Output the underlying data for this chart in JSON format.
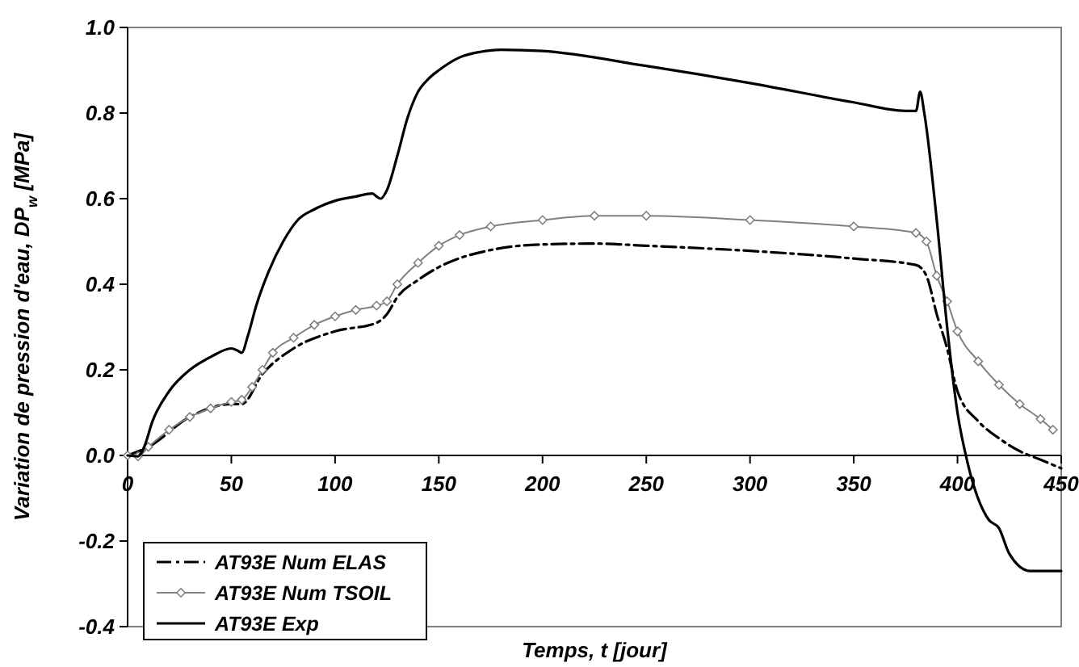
{
  "chart_data": {
    "type": "line",
    "xlabel": "Temps, t [jour]",
    "ylabel": "Variation de pression d'eau, DP$_{w}$ [MPa]",
    "xlim": [
      0,
      450
    ],
    "ylim": [
      -0.4,
      1.0
    ],
    "xticks": [
      0,
      50,
      100,
      150,
      200,
      250,
      300,
      350,
      400,
      450
    ],
    "yticks": [
      {
        "value": -0.4,
        "label": "-0.4"
      },
      {
        "value": -0.2,
        "label": "-0.2"
      },
      {
        "value": 0,
        "label": "0.0"
      },
      {
        "value": 0.2,
        "label": "0.2"
      },
      {
        "value": 0.4,
        "label": "0.4"
      },
      {
        "value": 0.6,
        "label": "0.6"
      },
      {
        "value": 0.8,
        "label": "0.8"
      },
      {
        "value": 1.0,
        "label": "1.0"
      }
    ],
    "grid": false,
    "legend": "bottom left",
    "series": [
      {
        "name": "AT93E Num ELAS",
        "color": "#000000",
        "line_style": "dashed",
        "marker": "none",
        "x": [
          0,
          10,
          30,
          50,
          55,
          65,
          80,
          100,
          120,
          125,
          130,
          140,
          150,
          175,
          200,
          225,
          250,
          300,
          350,
          380,
          385,
          390,
          395,
          400,
          410,
          420,
          430,
          440,
          450
        ],
        "values": [
          0,
          0.02,
          0.09,
          0.12,
          0.12,
          0.19,
          0.25,
          0.29,
          0.31,
          0.33,
          0.37,
          0.41,
          0.44,
          0.48,
          0.493,
          0.495,
          0.49,
          0.478,
          0.46,
          0.445,
          0.42,
          0.33,
          0.25,
          0.15,
          0.08,
          0.04,
          0.01,
          -0.01,
          -0.03
        ]
      },
      {
        "name": "AT93E Num TSOIL",
        "color": "#808080",
        "line_style": "solid",
        "marker": "diamond",
        "x": [
          0,
          5,
          10,
          20,
          30,
          40,
          50,
          55,
          60,
          65,
          70,
          80,
          90,
          100,
          110,
          120,
          125,
          130,
          140,
          150,
          160,
          175,
          200,
          225,
          250,
          300,
          350,
          380,
          385,
          390,
          395,
          400,
          410,
          420,
          430,
          440,
          446
        ],
        "values": [
          0,
          -0.002,
          0.02,
          0.06,
          0.09,
          0.11,
          0.125,
          0.13,
          0.16,
          0.2,
          0.24,
          0.275,
          0.305,
          0.325,
          0.34,
          0.35,
          0.36,
          0.4,
          0.45,
          0.49,
          0.515,
          0.535,
          0.55,
          0.56,
          0.56,
          0.55,
          0.535,
          0.52,
          0.5,
          0.42,
          0.36,
          0.29,
          0.22,
          0.165,
          0.12,
          0.085,
          0.06
        ]
      },
      {
        "name": "AT93E Exp",
        "color": "#000000",
        "line_style": "solid",
        "marker": "none",
        "x": [
          0,
          5,
          8,
          12,
          20,
          30,
          40,
          50,
          53,
          55,
          58,
          62,
          68,
          75,
          82,
          90,
          100,
          110,
          118,
          120,
          122,
          125,
          130,
          135,
          140,
          145,
          150,
          160,
          170,
          180,
          200,
          250,
          300,
          350,
          375,
          380,
          382,
          384,
          390,
          395,
          400,
          405,
          415,
          420,
          425,
          435,
          450
        ],
        "values": [
          0,
          -0.002,
          0.02,
          0.08,
          0.15,
          0.2,
          0.23,
          0.25,
          0.245,
          0.24,
          0.28,
          0.35,
          0.43,
          0.5,
          0.55,
          0.575,
          0.595,
          0.605,
          0.612,
          0.605,
          0.6,
          0.62,
          0.7,
          0.79,
          0.85,
          0.88,
          0.9,
          0.93,
          0.943,
          0.948,
          0.945,
          0.91,
          0.87,
          0.825,
          0.805,
          0.805,
          0.85,
          0.8,
          0.55,
          0.3,
          0.1,
          -0.02,
          -0.15,
          -0.17,
          -0.23,
          -0.27,
          -0.27
        ]
      }
    ]
  }
}
